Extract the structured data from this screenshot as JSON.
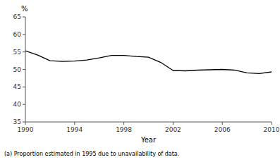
{
  "chart_data": {
    "type": "line",
    "x": [
      1990,
      1991,
      1992,
      1993,
      1994,
      1995,
      1996,
      1997,
      1998,
      1999,
      2000,
      2001,
      2002,
      2003,
      2004,
      2005,
      2006,
      2007,
      2008,
      2009,
      2010
    ],
    "values": [
      55.3,
      54.1,
      52.5,
      52.3,
      52.4,
      52.7,
      53.3,
      54.0,
      54.0,
      53.7,
      53.5,
      52.0,
      49.7,
      49.6,
      49.8,
      49.9,
      50.0,
      49.8,
      49.0,
      48.8,
      49.3
    ],
    "xlabel": "Year",
    "ylabel": "%",
    "footnote": "(a) Proportion estimated in 1995 due to unavailability of data.",
    "color": "#000000",
    "xlim": [
      1990,
      2010
    ],
    "ylim": [
      35,
      65
    ],
    "xticks": [
      1990,
      1994,
      1998,
      2002,
      2006,
      2010
    ],
    "yticks": [
      35,
      40,
      45,
      50,
      55,
      60,
      65
    ],
    "grid": false
  }
}
